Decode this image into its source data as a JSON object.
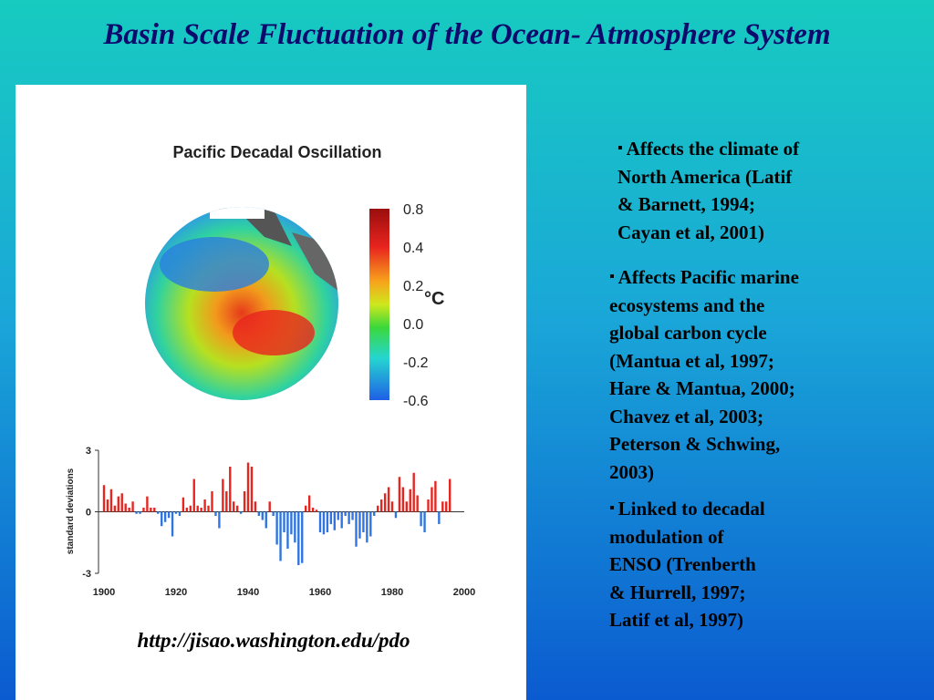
{
  "title": "Basin Scale Fluctuation of the Ocean- Atmosphere System",
  "url": "http://jisao.washington.edu/pdo",
  "map": {
    "title": "Pacific Decadal Oscillation",
    "colorbar_labels": [
      "0.8",
      "0.4",
      "0.2",
      "0.0",
      "-0.2",
      "-0.6"
    ],
    "unit": "°C"
  },
  "chart_data": {
    "type": "bar",
    "ylabel": "standard deviations",
    "x": [
      1900,
      1901,
      1902,
      1903,
      1904,
      1905,
      1906,
      1907,
      1908,
      1909,
      1910,
      1911,
      1912,
      1913,
      1914,
      1915,
      1916,
      1917,
      1918,
      1919,
      1920,
      1921,
      1922,
      1923,
      1924,
      1925,
      1926,
      1927,
      1928,
      1929,
      1930,
      1931,
      1932,
      1933,
      1934,
      1935,
      1936,
      1937,
      1938,
      1939,
      1940,
      1941,
      1942,
      1943,
      1944,
      1945,
      1946,
      1947,
      1948,
      1949,
      1950,
      1951,
      1952,
      1953,
      1954,
      1955,
      1956,
      1957,
      1958,
      1959,
      1960,
      1961,
      1962,
      1963,
      1964,
      1965,
      1966,
      1967,
      1968,
      1969,
      1970,
      1971,
      1972,
      1973,
      1974,
      1975,
      1976,
      1977,
      1978,
      1979,
      1980,
      1981,
      1982,
      1983,
      1984,
      1985,
      1986,
      1987,
      1988,
      1989,
      1990,
      1991,
      1992,
      1993,
      1994,
      1995,
      1996
    ],
    "values": [
      1.3,
      0.6,
      1.1,
      0.3,
      0.75,
      0.9,
      0.4,
      0.2,
      0.5,
      -0.1,
      -0.1,
      0.2,
      0.75,
      0.2,
      0.2,
      -0.1,
      -0.7,
      -0.5,
      -0.3,
      -1.2,
      -0.1,
      -0.2,
      0.7,
      0.2,
      0.3,
      1.6,
      0.3,
      0.2,
      0.6,
      0.3,
      1.0,
      -0.2,
      -0.8,
      1.6,
      1.0,
      2.2,
      0.5,
      0.3,
      -0.1,
      1.0,
      2.4,
      2.2,
      0.5,
      -0.2,
      -0.4,
      -0.8,
      0.5,
      -0.2,
      -1.6,
      -2.4,
      -1.0,
      -1.8,
      -1.1,
      -1.5,
      -2.6,
      -2.5,
      0.3,
      0.8,
      0.2,
      0.1,
      -1.0,
      -1.1,
      -1.0,
      -0.6,
      -0.9,
      -0.4,
      -0.8,
      -0.2,
      -0.6,
      -0.4,
      -1.7,
      -1.3,
      -1.0,
      -1.5,
      -1.2,
      -0.2,
      0.3,
      0.6,
      0.9,
      1.2,
      0.5,
      -0.3,
      1.7,
      1.2,
      0.5,
      1.1,
      1.9,
      0.8,
      -0.7,
      -1.0,
      0.6,
      1.2,
      1.5,
      -0.6,
      0.5,
      0.5,
      1.6
    ],
    "positive_color": "#e8241e",
    "negative_color": "#2f74e0",
    "xlim": [
      1900,
      2000
    ],
    "xticks": [
      1900,
      1920,
      1940,
      1960,
      1980,
      2000
    ],
    "ylim": [
      -3,
      3
    ],
    "yticks": [
      3,
      0,
      -3
    ]
  },
  "bullets": [
    [
      "Affects the climate of",
      "North America (Latif",
      "& Barnett, 1994;",
      "Cayan et al, 2001)"
    ],
    [
      "Affects Pacific marine",
      "ecosystems and the",
      "global carbon cycle",
      "(Mantua et al, 1997;",
      "Hare & Mantua, 2000;",
      "Chavez et al, 2003;",
      "Peterson & Schwing,",
      "2003)"
    ],
    [
      "Linked to decadal",
      "modulation of",
      "ENSO (Trenberth",
      "& Hurrell, 1997;",
      "Latif et al, 1997)"
    ]
  ]
}
